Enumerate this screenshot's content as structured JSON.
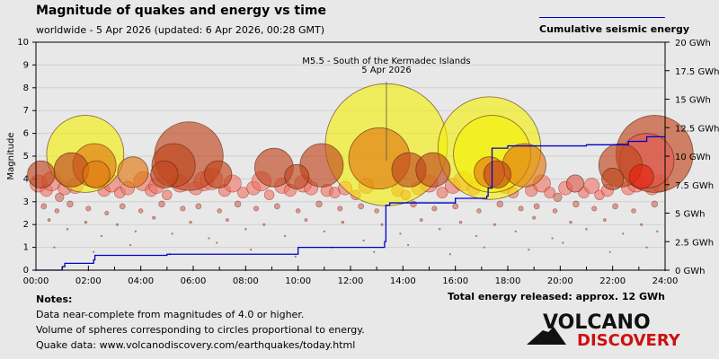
{
  "title": "Magnitude of quakes and energy vs time",
  "subtitle": "worldwide -  5 Apr 2026 (updated: 6 Apr 2026, 00:28 GMT)",
  "legend": "Cumulative seismic energy",
  "notes": {
    "heading": "Notes:",
    "lines": [
      "Data near-complete from magnitudes of 4.0 or higher.",
      "Volume of spheres corresponding to circles proportional to energy.",
      "Quake data: www.volcanodiscovery.com/earthquakes/today.html"
    ]
  },
  "total": "Total energy released: approx. 12 GWh",
  "logo": {
    "line1": "VOLCANO",
    "line2": "DISCOVERY"
  },
  "chart_data": {
    "type": "scatter",
    "ylabel": "Magnitude",
    "xlim": [
      0,
      24
    ],
    "ylim": [
      0,
      10
    ],
    "y2lim": [
      0,
      20
    ],
    "x_ticks": [
      "00:00",
      "02:00",
      "04:00",
      "06:00",
      "08:00",
      "10:00",
      "12:00",
      "14:00",
      "16:00",
      "18:00",
      "20:00",
      "22:00",
      "24:00"
    ],
    "y_ticks": [
      "0",
      "1",
      "2",
      "3",
      "4",
      "5",
      "6",
      "7",
      "8",
      "9",
      "10"
    ],
    "y2_ticks": [
      "0 GWh",
      "2.5 GWh",
      "5 GWh",
      "7.5 GWh",
      "10 GWh",
      "12.5 GWh",
      "15 GWh",
      "17.5 GWh",
      "20 GWh"
    ],
    "grid": true,
    "annotation": {
      "line1": "M5.5 - South of the Kermadec Islands",
      "line2": "5 Apr 2026",
      "time": 13.37,
      "mag": 5.5
    },
    "colors": {
      "energy_line": "#0000cc",
      "yellow": "#f5f000",
      "orange": "#e07810",
      "brown": "#c0461e",
      "red": "#e82010",
      "pink": "#e05a50"
    },
    "large_quakes": [
      {
        "time": 0.2,
        "mag": 4.2,
        "color": "brown"
      },
      {
        "time": 1.35,
        "mag": 4.4,
        "color": "brown"
      },
      {
        "time": 1.88,
        "mag": 5.1,
        "color": "yellow"
      },
      {
        "time": 2.23,
        "mag": 4.6,
        "color": "orange"
      },
      {
        "time": 2.3,
        "mag": 4.2,
        "color": "orange"
      },
      {
        "time": 3.7,
        "mag": 4.3,
        "color": "orange"
      },
      {
        "time": 4.9,
        "mag": 4.2,
        "color": "brown"
      },
      {
        "time": 5.25,
        "mag": 4.6,
        "color": "brown"
      },
      {
        "time": 5.83,
        "mag": 5.0,
        "color": "brown"
      },
      {
        "time": 6.95,
        "mag": 4.2,
        "color": "brown"
      },
      {
        "time": 9.08,
        "mag": 4.5,
        "color": "brown"
      },
      {
        "time": 9.95,
        "mag": 4.1,
        "color": "brown"
      },
      {
        "time": 10.9,
        "mag": 4.6,
        "color": "brown"
      },
      {
        "time": 13.37,
        "mag": 5.5,
        "color": "yellow"
      },
      {
        "time": 13.1,
        "mag": 4.9,
        "color": "orange"
      },
      {
        "time": 14.23,
        "mag": 4.4,
        "color": "brown"
      },
      {
        "time": 15.15,
        "mag": 4.4,
        "color": "brown"
      },
      {
        "time": 17.3,
        "mag": 5.35,
        "color": "yellow"
      },
      {
        "time": 17.4,
        "mag": 5.1,
        "color": "yellow"
      },
      {
        "time": 17.3,
        "mag": 4.3,
        "color": "orange"
      },
      {
        "time": 17.6,
        "mag": 4.2,
        "color": "brown"
      },
      {
        "time": 18.63,
        "mag": 4.6,
        "color": "orange"
      },
      {
        "time": 20.57,
        "mag": 3.8,
        "color": "pink"
      },
      {
        "time": 22.3,
        "mag": 4.6,
        "color": "brown"
      },
      {
        "time": 22.0,
        "mag": 4.0,
        "color": "brown"
      },
      {
        "time": 23.3,
        "mag": 4.8,
        "color": "pink"
      },
      {
        "time": 23.6,
        "mag": 5.1,
        "color": "brown"
      },
      {
        "time": 23.1,
        "mag": 4.1,
        "color": "red"
      }
    ],
    "small_quakes": [
      [
        0.1,
        3.8
      ],
      [
        0.4,
        3.5
      ],
      [
        0.6,
        3.9
      ],
      [
        0.9,
        3.2
      ],
      [
        1.1,
        3.6
      ],
      [
        1.5,
        3.7
      ],
      [
        2.6,
        3.5
      ],
      [
        2.9,
        3.8
      ],
      [
        3.2,
        3.4
      ],
      [
        3.5,
        3.6
      ],
      [
        4.1,
        3.9
      ],
      [
        4.4,
        3.5
      ],
      [
        4.6,
        3.7
      ],
      [
        5.0,
        3.3
      ],
      [
        5.5,
        3.8
      ],
      [
        6.1,
        3.6
      ],
      [
        6.4,
        3.9
      ],
      [
        6.7,
        4.0
      ],
      [
        7.2,
        3.5
      ],
      [
        7.5,
        3.8
      ],
      [
        7.9,
        3.4
      ],
      [
        8.3,
        3.6
      ],
      [
        8.6,
        3.9
      ],
      [
        8.9,
        3.3
      ],
      [
        9.4,
        3.7
      ],
      [
        9.7,
        3.5
      ],
      [
        10.2,
        3.8
      ],
      [
        10.5,
        3.6
      ],
      [
        11.1,
        3.5
      ],
      [
        11.4,
        3.4
      ],
      [
        11.8,
        3.6
      ],
      [
        12.2,
        3.3
      ],
      [
        12.6,
        3.7
      ],
      [
        13.8,
        3.5
      ],
      [
        14.1,
        3.3
      ],
      [
        14.6,
        3.6
      ],
      [
        15.0,
        3.8
      ],
      [
        15.5,
        3.4
      ],
      [
        15.9,
        3.7
      ],
      [
        16.3,
        3.9
      ],
      [
        16.7,
        3.6
      ],
      [
        17.9,
        3.7
      ],
      [
        18.2,
        3.4
      ],
      [
        18.9,
        3.5
      ],
      [
        19.3,
        3.8
      ],
      [
        19.6,
        3.4
      ],
      [
        19.9,
        3.2
      ],
      [
        20.2,
        3.6
      ],
      [
        20.9,
        3.4
      ],
      [
        21.2,
        3.7
      ],
      [
        21.5,
        3.3
      ],
      [
        21.8,
        3.5
      ],
      [
        22.6,
        3.6
      ],
      [
        22.9,
        3.8
      ],
      [
        23.5,
        3.6
      ],
      [
        23.8,
        3.8
      ],
      [
        0.3,
        2.8
      ],
      [
        0.8,
        2.6
      ],
      [
        1.3,
        2.9
      ],
      [
        2.0,
        2.7
      ],
      [
        2.7,
        2.5
      ],
      [
        3.3,
        2.8
      ],
      [
        4.0,
        2.6
      ],
      [
        4.8,
        2.9
      ],
      [
        5.6,
        2.7
      ],
      [
        6.2,
        2.8
      ],
      [
        7.0,
        2.6
      ],
      [
        7.7,
        2.9
      ],
      [
        8.4,
        2.7
      ],
      [
        9.2,
        2.8
      ],
      [
        10.0,
        2.6
      ],
      [
        10.8,
        2.9
      ],
      [
        11.6,
        2.7
      ],
      [
        12.4,
        2.8
      ],
      [
        13.0,
        2.6
      ],
      [
        14.4,
        2.9
      ],
      [
        15.2,
        2.7
      ],
      [
        16.0,
        2.8
      ],
      [
        16.9,
        2.6
      ],
      [
        17.7,
        2.9
      ],
      [
        18.5,
        2.7
      ],
      [
        19.1,
        2.8
      ],
      [
        19.8,
        2.6
      ],
      [
        20.6,
        2.9
      ],
      [
        21.3,
        2.7
      ],
      [
        22.1,
        2.8
      ],
      [
        22.8,
        2.6
      ],
      [
        23.6,
        2.9
      ],
      [
        0.5,
        2.2
      ],
      [
        1.2,
        1.8
      ],
      [
        1.9,
        2.1
      ],
      [
        2.5,
        1.5
      ],
      [
        3.1,
        2.0
      ],
      [
        3.8,
        1.7
      ],
      [
        4.5,
        2.3
      ],
      [
        5.2,
        1.6
      ],
      [
        5.9,
        2.1
      ],
      [
        6.6,
        1.4
      ],
      [
        7.3,
        2.2
      ],
      [
        8.0,
        1.8
      ],
      [
        8.7,
        2.0
      ],
      [
        9.5,
        1.5
      ],
      [
        10.3,
        2.2
      ],
      [
        11.0,
        1.7
      ],
      [
        11.7,
        2.1
      ],
      [
        12.5,
        1.3
      ],
      [
        13.2,
        2.0
      ],
      [
        13.9,
        1.6
      ],
      [
        14.7,
        2.2
      ],
      [
        15.4,
        1.8
      ],
      [
        16.2,
        2.1
      ],
      [
        16.8,
        1.5
      ],
      [
        17.5,
        2.0
      ],
      [
        18.3,
        1.7
      ],
      [
        19.0,
        2.3
      ],
      [
        19.7,
        1.4
      ],
      [
        20.4,
        2.1
      ],
      [
        21.0,
        1.8
      ],
      [
        21.7,
        2.2
      ],
      [
        22.4,
        1.6
      ],
      [
        23.1,
        2.0
      ],
      [
        23.7,
        1.7
      ],
      [
        0.7,
        1.0
      ],
      [
        2.2,
        0.8
      ],
      [
        3.6,
        1.1
      ],
      [
        5.1,
        0.7
      ],
      [
        6.9,
        1.2
      ],
      [
        8.2,
        0.9
      ],
      [
        9.9,
        0.6
      ],
      [
        11.3,
        1.0
      ],
      [
        12.9,
        0.8
      ],
      [
        14.2,
        1.1
      ],
      [
        15.8,
        0.7
      ],
      [
        17.1,
        1.0
      ],
      [
        18.8,
        0.9
      ],
      [
        20.1,
        1.2
      ],
      [
        21.9,
        0.8
      ],
      [
        23.3,
        1.0
      ]
    ],
    "energy_series": {
      "x": [
        0,
        1.0,
        1.1,
        2.2,
        2.25,
        5.0,
        10.0,
        13.3,
        13.35,
        13.5,
        16.0,
        17.2,
        17.25,
        17.35,
        17.4,
        18.0,
        21.0,
        22.6,
        23.3,
        24
      ],
      "y": [
        0,
        0.3,
        0.6,
        0.9,
        1.3,
        1.4,
        2.0,
        2.5,
        5.7,
        5.9,
        6.3,
        6.5,
        7.2,
        7.2,
        10.7,
        10.9,
        11.0,
        11.3,
        11.7,
        11.7
      ]
    }
  }
}
